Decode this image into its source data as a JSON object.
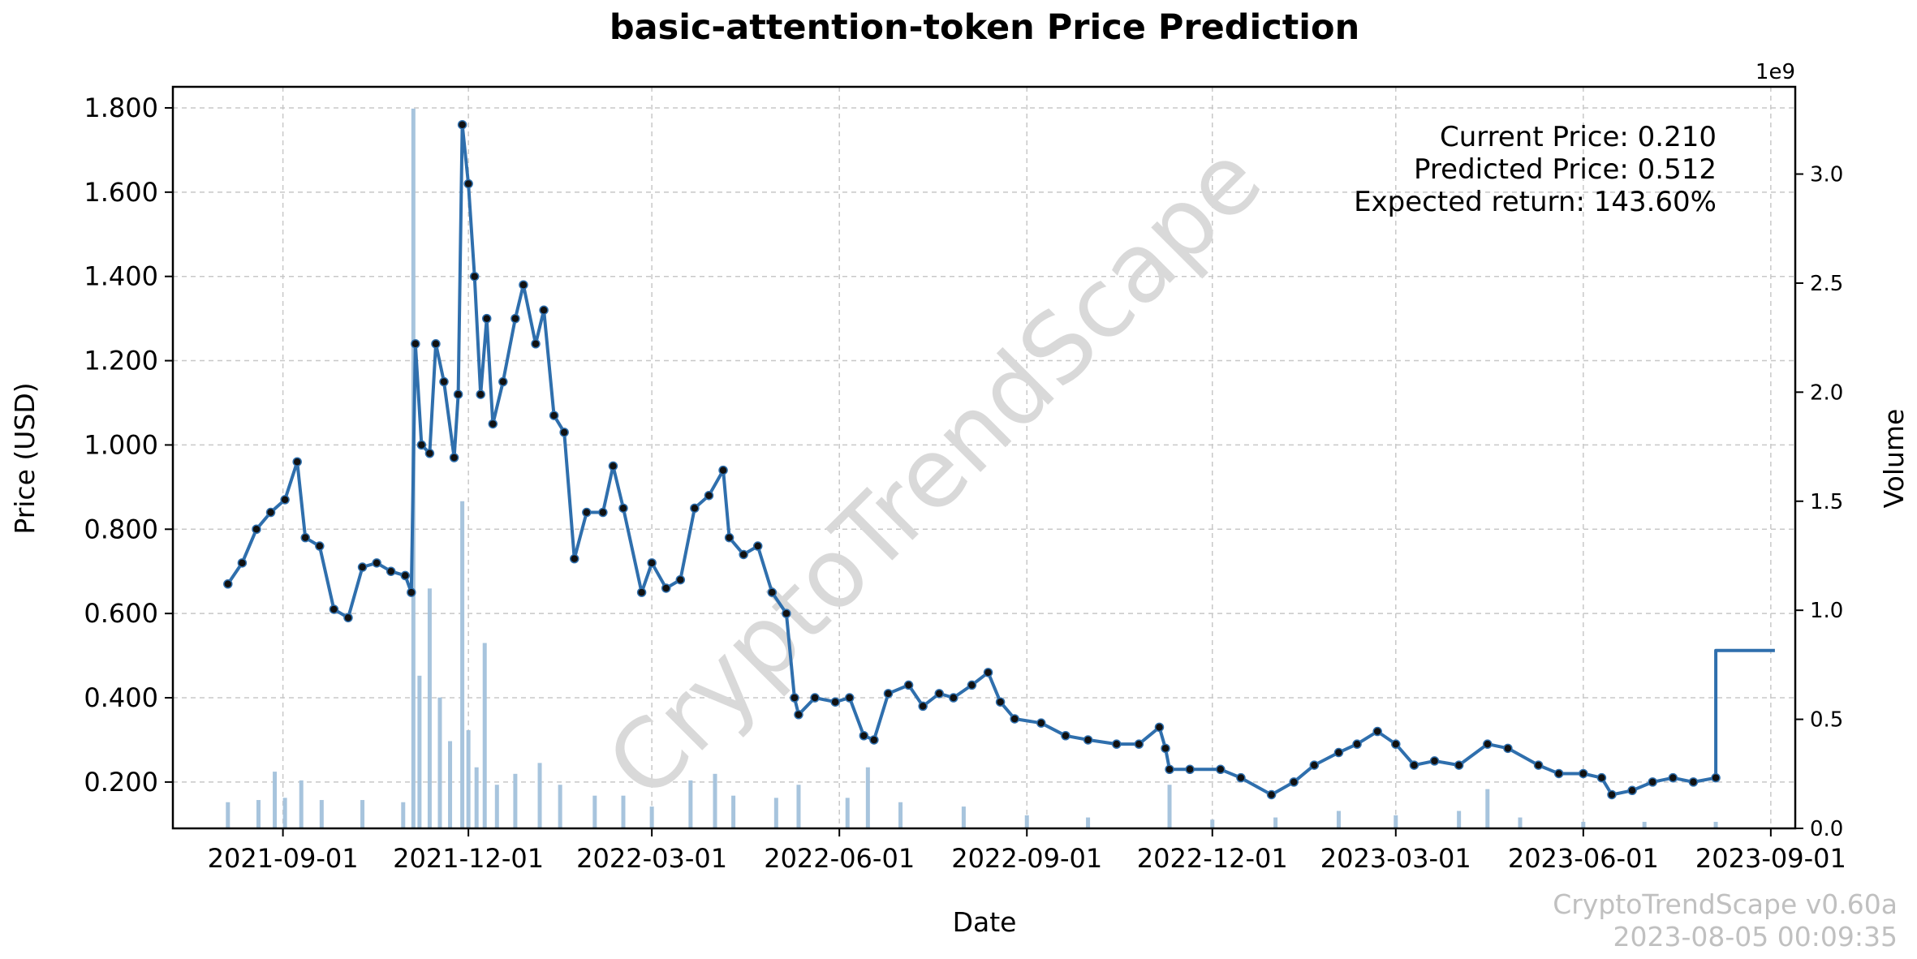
{
  "chart_data": {
    "type": "line",
    "title": "basic-attention-token Price Prediction",
    "xlabel": "Date",
    "ylabel": "Price (USD)",
    "y2label": "Volume",
    "y2_multiplier_label": "1e9",
    "watermark": "CryptoTrendScape",
    "footer_version": "CryptoTrendScape v0.60a",
    "footer_timestamp": "2023-08-05 00:09:35",
    "annotations": [
      "Current Price: 0.210",
      "Predicted Price: 0.512",
      "Expected return: 143.60%"
    ],
    "x_range": [
      "2021-07-09",
      "2023-09-13"
    ],
    "ylim": [
      0.09,
      1.85
    ],
    "y2lim": [
      0,
      3.4
    ],
    "grid": true,
    "x_ticks": [
      "2021-09-01",
      "2021-12-01",
      "2022-03-01",
      "2022-06-01",
      "2022-09-01",
      "2022-12-01",
      "2023-03-01",
      "2023-06-01",
      "2023-09-01"
    ],
    "y_ticks": [
      "0.200",
      "0.400",
      "0.600",
      "0.800",
      "1.000",
      "1.200",
      "1.400",
      "1.600",
      "1.800"
    ],
    "y2_ticks": [
      "0.0",
      "0.5",
      "1.0",
      "1.5",
      "2.0",
      "2.5",
      "3.0"
    ],
    "series": [
      {
        "name": "Price",
        "color": "#2f6fad",
        "points": [
          [
            "2021-08-05",
            0.67
          ],
          [
            "2021-08-12",
            0.72
          ],
          [
            "2021-08-19",
            0.8
          ],
          [
            "2021-08-26",
            0.84
          ],
          [
            "2021-09-02",
            0.87
          ],
          [
            "2021-09-08",
            0.96
          ],
          [
            "2021-09-12",
            0.78
          ],
          [
            "2021-09-19",
            0.76
          ],
          [
            "2021-09-26",
            0.61
          ],
          [
            "2021-10-03",
            0.59
          ],
          [
            "2021-10-10",
            0.71
          ],
          [
            "2021-10-17",
            0.72
          ],
          [
            "2021-10-24",
            0.7
          ],
          [
            "2021-10-31",
            0.69
          ],
          [
            "2021-11-03",
            0.65
          ],
          [
            "2021-11-05",
            1.24
          ],
          [
            "2021-11-08",
            1.0
          ],
          [
            "2021-11-12",
            0.98
          ],
          [
            "2021-11-15",
            1.24
          ],
          [
            "2021-11-19",
            1.15
          ],
          [
            "2021-11-24",
            0.97
          ],
          [
            "2021-11-26",
            1.12
          ],
          [
            "2021-11-28",
            1.76
          ],
          [
            "2021-12-01",
            1.62
          ],
          [
            "2021-12-04",
            1.4
          ],
          [
            "2021-12-07",
            1.12
          ],
          [
            "2021-12-10",
            1.3
          ],
          [
            "2021-12-13",
            1.05
          ],
          [
            "2021-12-18",
            1.15
          ],
          [
            "2021-12-24",
            1.3
          ],
          [
            "2021-12-28",
            1.38
          ],
          [
            "2022-01-03",
            1.24
          ],
          [
            "2022-01-07",
            1.32
          ],
          [
            "2022-01-12",
            1.07
          ],
          [
            "2022-01-17",
            1.03
          ],
          [
            "2022-01-22",
            0.73
          ],
          [
            "2022-01-28",
            0.84
          ],
          [
            "2022-02-05",
            0.84
          ],
          [
            "2022-02-10",
            0.95
          ],
          [
            "2022-02-15",
            0.85
          ],
          [
            "2022-02-24",
            0.65
          ],
          [
            "2022-03-01",
            0.72
          ],
          [
            "2022-03-08",
            0.66
          ],
          [
            "2022-03-15",
            0.68
          ],
          [
            "2022-03-22",
            0.85
          ],
          [
            "2022-03-29",
            0.88
          ],
          [
            "2022-04-05",
            0.94
          ],
          [
            "2022-04-08",
            0.78
          ],
          [
            "2022-04-15",
            0.74
          ],
          [
            "2022-04-22",
            0.76
          ],
          [
            "2022-04-29",
            0.65
          ],
          [
            "2022-05-06",
            0.6
          ],
          [
            "2022-05-10",
            0.4
          ],
          [
            "2022-05-12",
            0.36
          ],
          [
            "2022-05-20",
            0.4
          ],
          [
            "2022-05-30",
            0.39
          ],
          [
            "2022-06-06",
            0.4
          ],
          [
            "2022-06-13",
            0.31
          ],
          [
            "2022-06-18",
            0.3
          ],
          [
            "2022-06-25",
            0.41
          ],
          [
            "2022-07-05",
            0.43
          ],
          [
            "2022-07-12",
            0.38
          ],
          [
            "2022-07-20",
            0.41
          ],
          [
            "2022-07-27",
            0.4
          ],
          [
            "2022-08-05",
            0.43
          ],
          [
            "2022-08-13",
            0.46
          ],
          [
            "2022-08-19",
            0.39
          ],
          [
            "2022-08-26",
            0.35
          ],
          [
            "2022-09-08",
            0.34
          ],
          [
            "2022-09-20",
            0.31
          ],
          [
            "2022-10-01",
            0.3
          ],
          [
            "2022-10-15",
            0.29
          ],
          [
            "2022-10-26",
            0.29
          ],
          [
            "2022-11-05",
            0.33
          ],
          [
            "2022-11-08",
            0.28
          ],
          [
            "2022-11-10",
            0.23
          ],
          [
            "2022-11-20",
            0.23
          ],
          [
            "2022-12-05",
            0.23
          ],
          [
            "2022-12-15",
            0.21
          ],
          [
            "2022-12-30",
            0.17
          ],
          [
            "2023-01-10",
            0.2
          ],
          [
            "2023-01-20",
            0.24
          ],
          [
            "2023-02-01",
            0.27
          ],
          [
            "2023-02-10",
            0.29
          ],
          [
            "2023-02-20",
            0.32
          ],
          [
            "2023-03-01",
            0.29
          ],
          [
            "2023-03-10",
            0.24
          ],
          [
            "2023-03-20",
            0.25
          ],
          [
            "2023-04-01",
            0.24
          ],
          [
            "2023-04-15",
            0.29
          ],
          [
            "2023-04-25",
            0.28
          ],
          [
            "2023-05-10",
            0.24
          ],
          [
            "2023-05-20",
            0.22
          ],
          [
            "2023-06-01",
            0.22
          ],
          [
            "2023-06-10",
            0.21
          ],
          [
            "2023-06-15",
            0.17
          ],
          [
            "2023-06-25",
            0.18
          ],
          [
            "2023-07-05",
            0.2
          ],
          [
            "2023-07-15",
            0.21
          ],
          [
            "2023-07-25",
            0.2
          ],
          [
            "2023-08-05",
            0.21
          ]
        ]
      },
      {
        "name": "Prediction",
        "color": "#2f6fad",
        "points": [
          [
            "2023-08-05",
            0.21
          ],
          [
            "2023-08-05",
            0.512
          ],
          [
            "2023-09-03",
            0.512
          ]
        ]
      },
      {
        "name": "Volume",
        "color": "#a7c4dd",
        "axis": "right",
        "points": [
          [
            "2021-08-05",
            0.12
          ],
          [
            "2021-08-20",
            0.13
          ],
          [
            "2021-08-28",
            0.26
          ],
          [
            "2021-09-02",
            0.14
          ],
          [
            "2021-09-10",
            0.22
          ],
          [
            "2021-09-20",
            0.13
          ],
          [
            "2021-10-10",
            0.13
          ],
          [
            "2021-10-30",
            0.12
          ],
          [
            "2021-11-04",
            3.3
          ],
          [
            "2021-11-07",
            0.7
          ],
          [
            "2021-11-12",
            1.1
          ],
          [
            "2021-11-17",
            0.6
          ],
          [
            "2021-11-22",
            0.4
          ],
          [
            "2021-11-28",
            1.5
          ],
          [
            "2021-12-01",
            0.45
          ],
          [
            "2021-12-05",
            0.28
          ],
          [
            "2021-12-09",
            0.85
          ],
          [
            "2021-12-15",
            0.2
          ],
          [
            "2021-12-24",
            0.25
          ],
          [
            "2022-01-05",
            0.3
          ],
          [
            "2022-01-15",
            0.2
          ],
          [
            "2022-02-01",
            0.15
          ],
          [
            "2022-02-15",
            0.15
          ],
          [
            "2022-03-01",
            0.1
          ],
          [
            "2022-03-20",
            0.22
          ],
          [
            "2022-04-01",
            0.25
          ],
          [
            "2022-04-10",
            0.15
          ],
          [
            "2022-05-01",
            0.14
          ],
          [
            "2022-05-12",
            0.2
          ],
          [
            "2022-06-05",
            0.14
          ],
          [
            "2022-06-15",
            0.28
          ],
          [
            "2022-07-01",
            0.12
          ],
          [
            "2022-08-01",
            0.1
          ],
          [
            "2022-09-01",
            0.06
          ],
          [
            "2022-10-01",
            0.05
          ],
          [
            "2022-11-10",
            0.2
          ],
          [
            "2022-12-01",
            0.04
          ],
          [
            "2023-01-01",
            0.05
          ],
          [
            "2023-02-01",
            0.08
          ],
          [
            "2023-03-01",
            0.06
          ],
          [
            "2023-04-01",
            0.08
          ],
          [
            "2023-04-15",
            0.18
          ],
          [
            "2023-05-01",
            0.05
          ],
          [
            "2023-06-01",
            0.03
          ],
          [
            "2023-07-01",
            0.03
          ],
          [
            "2023-08-05",
            0.03
          ]
        ]
      }
    ]
  }
}
